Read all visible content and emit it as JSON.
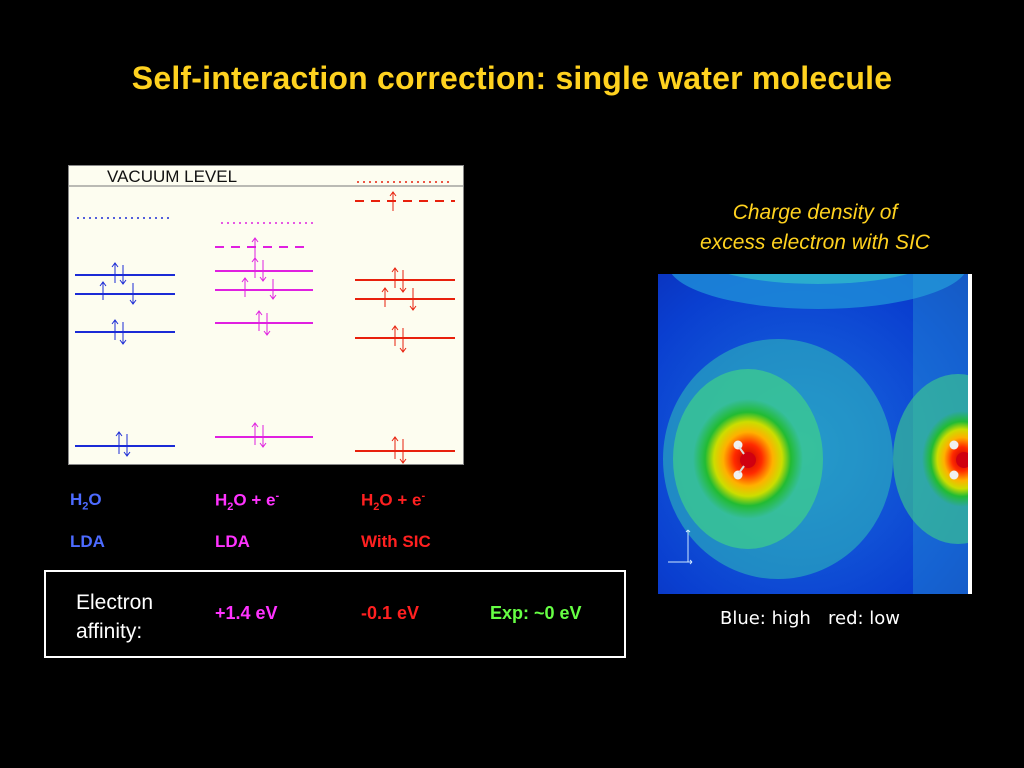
{
  "title": "Self-interaction correction: single water molecule",
  "diagram": {
    "vacuum_label": "VACUUM LEVEL"
  },
  "columns": [
    {
      "formula": "H",
      "sub": "2",
      "rest": "O",
      "sup": "",
      "method": "LDA",
      "color": "#4d6bff"
    },
    {
      "formula": "H",
      "sub": "2",
      "rest": "O + e",
      "sup": "-",
      "method": "LDA",
      "color": "#ff33ff"
    },
    {
      "formula": "H",
      "sub": "2",
      "rest": "O + e",
      "sup": "-",
      "method": "With SIC",
      "color": "#ff2020"
    }
  ],
  "electron_affinity": {
    "label": "Electron affinity:",
    "lda": "+1.4 eV",
    "sic": "-0.1 eV",
    "exp": "Exp: ~0 eV",
    "colors": {
      "lda": "#ff33ff",
      "sic": "#ff2020",
      "exp": "#66ff44"
    }
  },
  "charge_density": {
    "caption_line1": "Charge density of",
    "caption_line2": "excess electron with SIC",
    "legend": "Blue: high   red: low"
  }
}
